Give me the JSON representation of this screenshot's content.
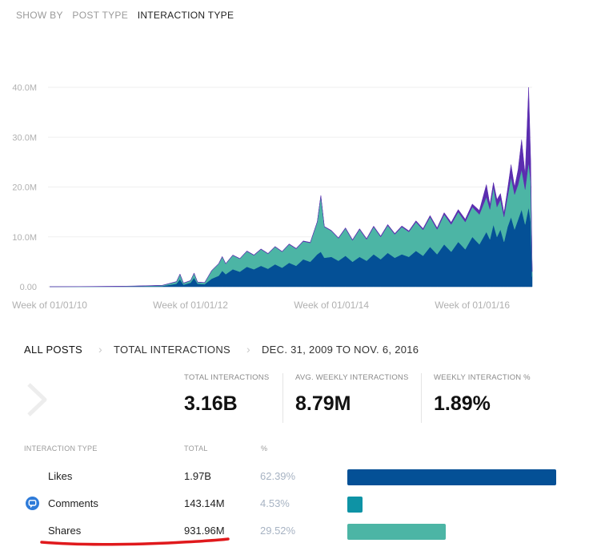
{
  "filter": {
    "label": "SHOW BY",
    "options": [
      "POST TYPE",
      "INTERACTION TYPE"
    ],
    "selected": "INTERACTION TYPE"
  },
  "chart_data": {
    "type": "area",
    "stacked": true,
    "y_ticks": [
      "0.00",
      "10.0M",
      "20.0M",
      "30.0M",
      "40.0M"
    ],
    "ylim": [
      0,
      40000000
    ],
    "x_ticks": [
      "Week of 01/01/10",
      "Week of 01/01/12",
      "Week of 01/01/14",
      "Week of 01/01/16"
    ],
    "x_start_year": 2010.0,
    "x_end_year": 2016.85,
    "grid": true,
    "series": [
      {
        "name": "Likes",
        "color": "#045096",
        "points": [
          [
            2010.0,
            0
          ],
          [
            2010.5,
            0.02
          ],
          [
            2011.0,
            0.05
          ],
          [
            2011.3,
            0.1
          ],
          [
            2011.6,
            0.15
          ],
          [
            2011.8,
            0.6
          ],
          [
            2011.85,
            1.5
          ],
          [
            2011.9,
            0.4
          ],
          [
            2012.0,
            0.8
          ],
          [
            2012.05,
            1.8
          ],
          [
            2012.1,
            0.6
          ],
          [
            2012.2,
            0.5
          ],
          [
            2012.3,
            1.6
          ],
          [
            2012.4,
            2.2
          ],
          [
            2012.45,
            3.2
          ],
          [
            2012.5,
            2.5
          ],
          [
            2012.6,
            3.5
          ],
          [
            2012.7,
            3.0
          ],
          [
            2012.8,
            4.0
          ],
          [
            2012.9,
            3.5
          ],
          [
            2013.0,
            4.2
          ],
          [
            2013.1,
            3.6
          ],
          [
            2013.2,
            4.5
          ],
          [
            2013.3,
            3.8
          ],
          [
            2013.4,
            4.8
          ],
          [
            2013.5,
            4.2
          ],
          [
            2013.6,
            5.5
          ],
          [
            2013.7,
            5.0
          ],
          [
            2013.8,
            6.5
          ],
          [
            2013.85,
            7.0
          ],
          [
            2013.9,
            5.8
          ],
          [
            2014.0,
            6.0
          ],
          [
            2014.1,
            5.2
          ],
          [
            2014.2,
            6.2
          ],
          [
            2014.3,
            5.0
          ],
          [
            2014.4,
            6.0
          ],
          [
            2014.5,
            5.2
          ],
          [
            2014.6,
            6.5
          ],
          [
            2014.7,
            5.5
          ],
          [
            2014.8,
            6.8
          ],
          [
            2014.9,
            5.8
          ],
          [
            2015.0,
            6.5
          ],
          [
            2015.1,
            6.0
          ],
          [
            2015.2,
            7.2
          ],
          [
            2015.3,
            6.2
          ],
          [
            2015.4,
            8.0
          ],
          [
            2015.5,
            6.5
          ],
          [
            2015.6,
            8.5
          ],
          [
            2015.7,
            7.0
          ],
          [
            2015.8,
            9.0
          ],
          [
            2015.9,
            7.5
          ],
          [
            2016.0,
            10.0
          ],
          [
            2016.1,
            8.5
          ],
          [
            2016.2,
            11.0
          ],
          [
            2016.25,
            9.5
          ],
          [
            2016.3,
            12.5
          ],
          [
            2016.35,
            10.0
          ],
          [
            2016.4,
            11.5
          ],
          [
            2016.45,
            9.0
          ],
          [
            2016.5,
            12.0
          ],
          [
            2016.55,
            14.0
          ],
          [
            2016.6,
            11.5
          ],
          [
            2016.65,
            13.5
          ],
          [
            2016.7,
            15.5
          ],
          [
            2016.75,
            12.5
          ],
          [
            2016.8,
            16.0
          ],
          [
            2016.83,
            13.0
          ],
          [
            2016.85,
            2.0
          ]
        ]
      },
      {
        "name": "Shares",
        "color": "#4cb5a5",
        "points": [
          [
            2010.0,
            0
          ],
          [
            2010.5,
            0.01
          ],
          [
            2011.0,
            0.02
          ],
          [
            2011.3,
            0.05
          ],
          [
            2011.6,
            0.1
          ],
          [
            2011.8,
            0.4
          ],
          [
            2011.85,
            1.0
          ],
          [
            2011.9,
            0.3
          ],
          [
            2012.0,
            0.4
          ],
          [
            2012.05,
            0.9
          ],
          [
            2012.1,
            0.3
          ],
          [
            2012.2,
            0.3
          ],
          [
            2012.3,
            1.6
          ],
          [
            2012.4,
            2.4
          ],
          [
            2012.45,
            2.8
          ],
          [
            2012.5,
            2.1
          ],
          [
            2012.6,
            2.8
          ],
          [
            2012.7,
            2.6
          ],
          [
            2012.8,
            3.1
          ],
          [
            2012.9,
            2.8
          ],
          [
            2013.0,
            3.3
          ],
          [
            2013.1,
            3.0
          ],
          [
            2013.2,
            3.5
          ],
          [
            2013.3,
            3.2
          ],
          [
            2013.4,
            3.7
          ],
          [
            2013.5,
            3.4
          ],
          [
            2013.6,
            3.6
          ],
          [
            2013.7,
            3.8
          ],
          [
            2013.8,
            6.5
          ],
          [
            2013.85,
            11.2
          ],
          [
            2013.9,
            6.2
          ],
          [
            2014.0,
            5.2
          ],
          [
            2014.1,
            4.5
          ],
          [
            2014.2,
            5.5
          ],
          [
            2014.3,
            4.3
          ],
          [
            2014.4,
            5.5
          ],
          [
            2014.5,
            4.3
          ],
          [
            2014.6,
            5.5
          ],
          [
            2014.7,
            4.5
          ],
          [
            2014.8,
            5.5
          ],
          [
            2014.9,
            4.7
          ],
          [
            2015.0,
            5.5
          ],
          [
            2015.1,
            5.0
          ],
          [
            2015.2,
            5.8
          ],
          [
            2015.3,
            5.2
          ],
          [
            2015.4,
            6.0
          ],
          [
            2015.5,
            5.0
          ],
          [
            2015.6,
            6.0
          ],
          [
            2015.7,
            5.5
          ],
          [
            2015.8,
            6.0
          ],
          [
            2015.9,
            5.5
          ],
          [
            2016.0,
            6.0
          ],
          [
            2016.1,
            6.0
          ],
          [
            2016.2,
            7.0
          ],
          [
            2016.25,
            6.0
          ],
          [
            2016.3,
            7.5
          ],
          [
            2016.35,
            6.0
          ],
          [
            2016.4,
            6.0
          ],
          [
            2016.45,
            5.0
          ],
          [
            2016.5,
            6.0
          ],
          [
            2016.55,
            8.0
          ],
          [
            2016.6,
            7.0
          ],
          [
            2016.65,
            7.0
          ],
          [
            2016.7,
            8.0
          ],
          [
            2016.75,
            7.0
          ],
          [
            2016.8,
            9.0
          ],
          [
            2016.83,
            8.0
          ],
          [
            2016.85,
            1.0
          ]
        ]
      },
      {
        "name": "Comments",
        "color": "#5b2db0",
        "points": [
          [
            2010.0,
            0
          ],
          [
            2013.8,
            0.1
          ],
          [
            2014.0,
            0.1
          ],
          [
            2015.0,
            0.2
          ],
          [
            2015.5,
            0.3
          ],
          [
            2016.0,
            0.6
          ],
          [
            2016.1,
            0.8
          ],
          [
            2016.2,
            2.5
          ],
          [
            2016.25,
            1.0
          ],
          [
            2016.3,
            0.9
          ],
          [
            2016.35,
            1.5
          ],
          [
            2016.4,
            1.2
          ],
          [
            2016.45,
            0.8
          ],
          [
            2016.5,
            1.5
          ],
          [
            2016.55,
            2.5
          ],
          [
            2016.6,
            1.5
          ],
          [
            2016.65,
            3.0
          ],
          [
            2016.7,
            6.0
          ],
          [
            2016.75,
            3.0
          ],
          [
            2016.8,
            15.0
          ],
          [
            2016.83,
            4.0
          ],
          [
            2016.85,
            0.5
          ]
        ]
      }
    ]
  },
  "breadcrumb": {
    "items": [
      "ALL POSTS",
      "TOTAL INTERACTIONS",
      "DEC. 31, 2009 TO NOV. 6, 2016"
    ]
  },
  "kpis": [
    {
      "label": "TOTAL INTERACTIONS",
      "value": "3.16B"
    },
    {
      "label": "AVG. WEEKLY INTERACTIONS",
      "value": "8.79M"
    },
    {
      "label": "WEEKLY INTERACTION %",
      "value": "1.89%"
    }
  ],
  "table": {
    "headers": [
      "INTERACTION TYPE",
      "TOTAL",
      "%"
    ],
    "rows": [
      {
        "name": "Likes",
        "total": "1.97B",
        "pct": "62.39%",
        "share": 62.39,
        "color": "#045096"
      },
      {
        "name": "Comments",
        "total": "143.14M",
        "pct": "4.53%",
        "share": 4.53,
        "color": "#0e93a5"
      },
      {
        "name": "Shares",
        "total": "931.96M",
        "pct": "29.52%",
        "share": 29.52,
        "color": "#4cb5a5"
      }
    ]
  },
  "colors": {
    "annotation_red": "#e0191c",
    "comment_icon": "#2e7bd9"
  },
  "icons": [
    "chevron-right-icon",
    "comment-bubble-icon"
  ]
}
